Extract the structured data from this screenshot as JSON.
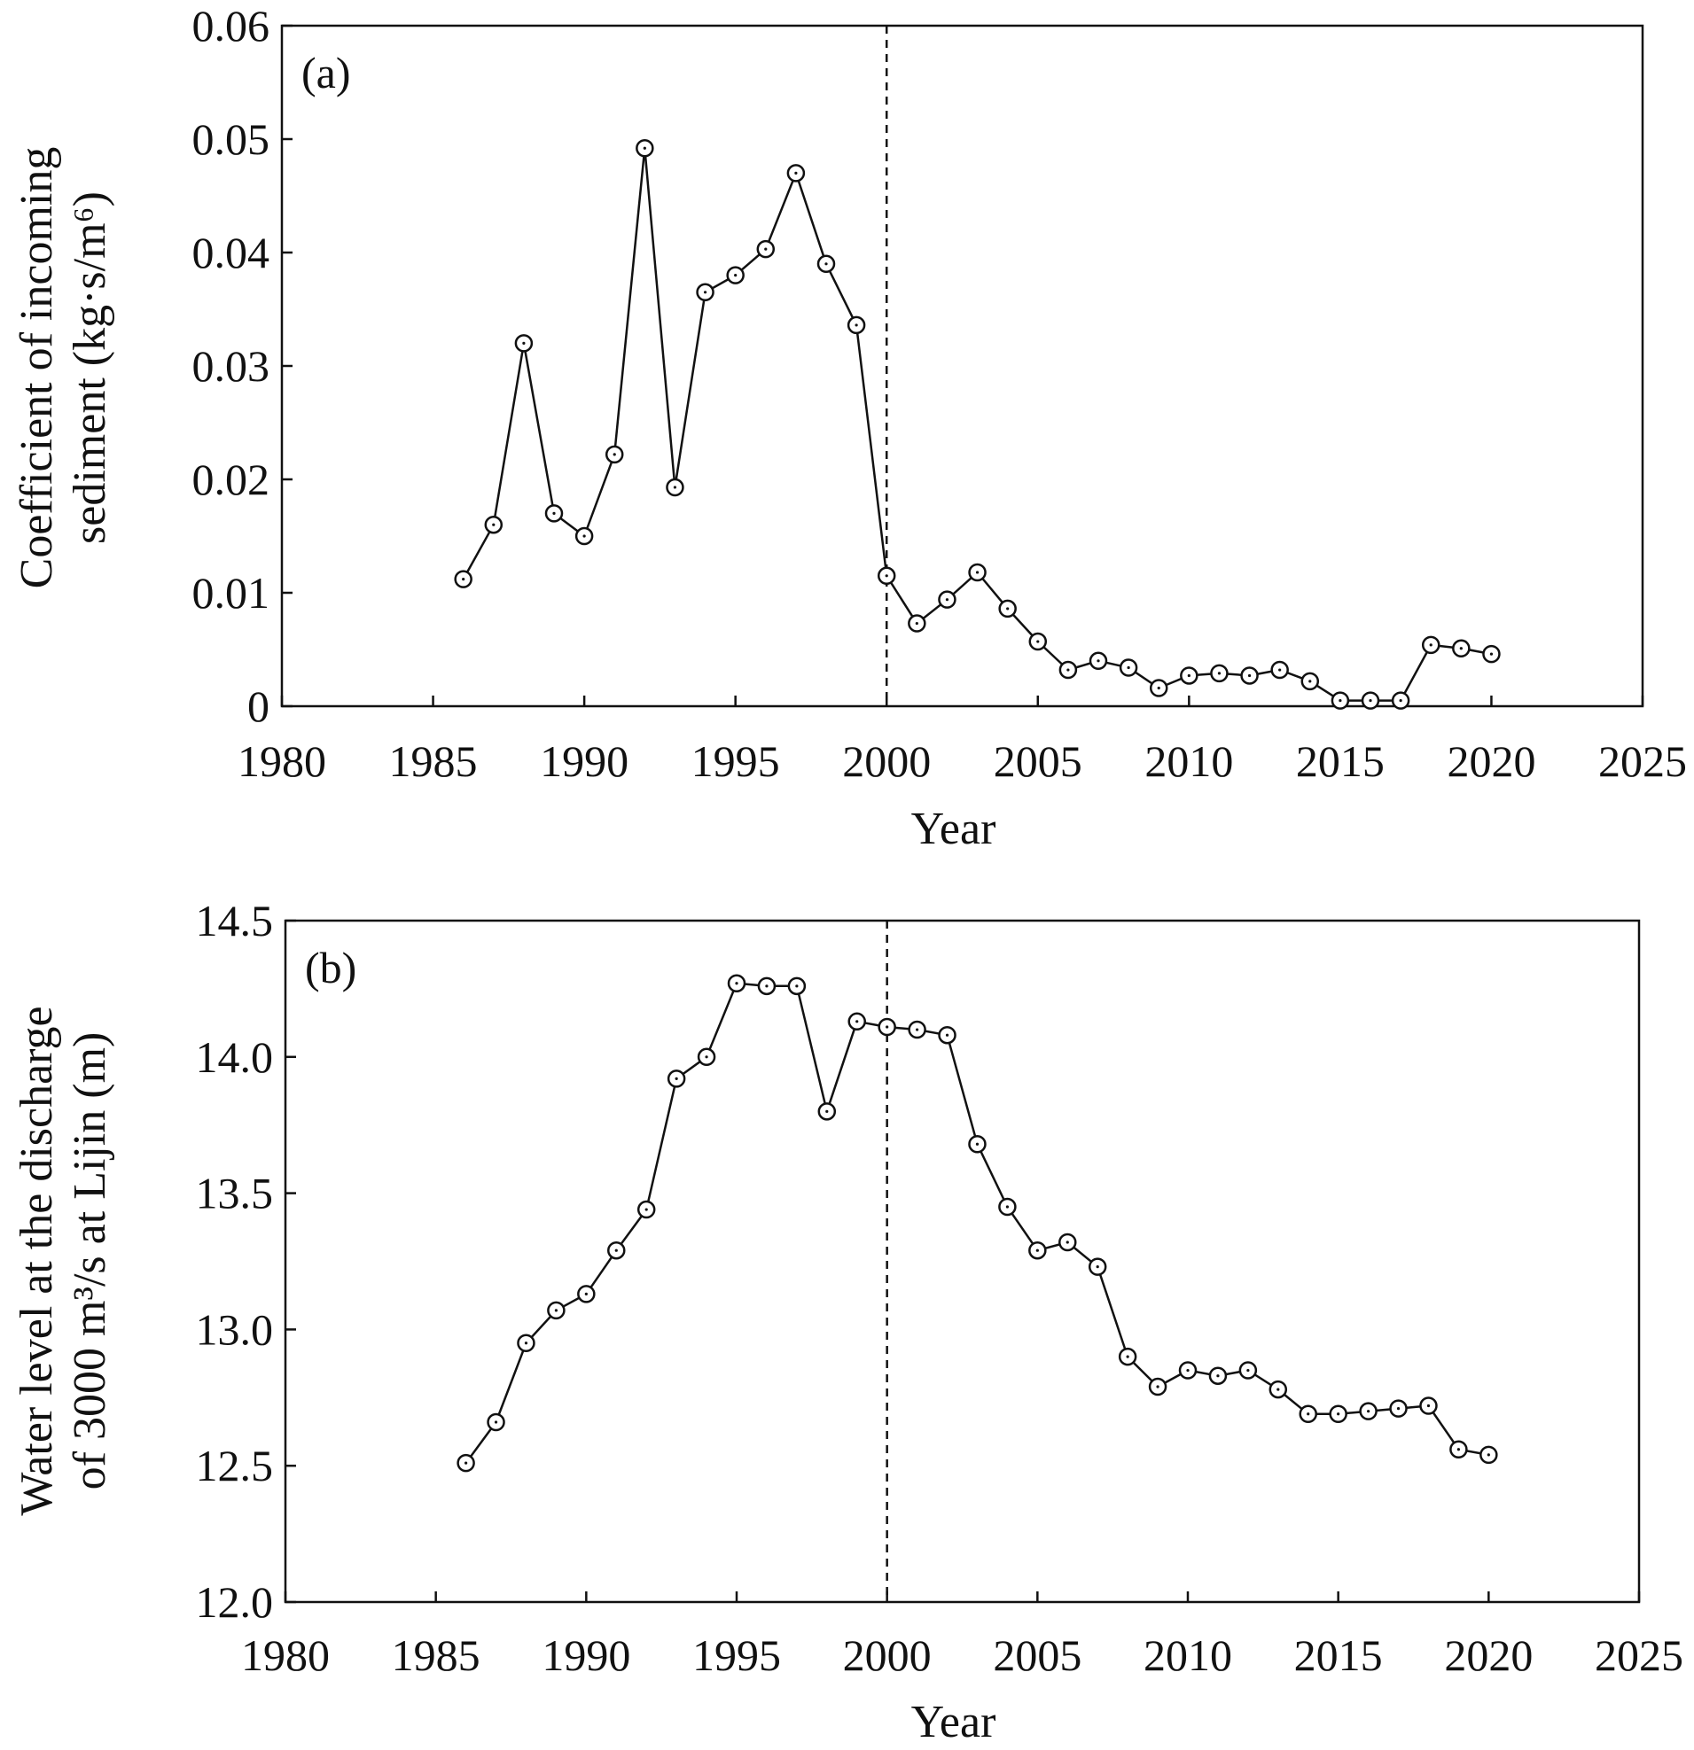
{
  "chart_data": [
    {
      "type": "line",
      "panel_label": "(a)",
      "xlabel": "Year",
      "ylabel_lines": [
        "Coefficient of incoming",
        "sediment (kg·s/m⁶)"
      ],
      "xlim": [
        1980,
        2025
      ],
      "ylim": [
        0,
        0.06
      ],
      "xticks": [
        1980,
        1985,
        1990,
        1995,
        2000,
        2005,
        2010,
        2015,
        2020,
        2025
      ],
      "xtick_labels": [
        "1980",
        "1985",
        "1990",
        "1995",
        "2000",
        "2005",
        "2010",
        "2015",
        "2020",
        "2025"
      ],
      "yticks": [
        0,
        0.01,
        0.02,
        0.03,
        0.04,
        0.05,
        0.06
      ],
      "ytick_labels": [
        "0",
        "0.01",
        "0.02",
        "0.03",
        "0.04",
        "0.05",
        "0.06"
      ],
      "reference_line_x": 2000,
      "grid": false,
      "marker": "open-circle",
      "series": [
        {
          "x": [
            1986,
            1987,
            1988,
            1989,
            1990,
            1991,
            1992,
            1993,
            1994,
            1995,
            1996,
            1997,
            1998,
            1999,
            2000,
            2001,
            2002,
            2003,
            2004,
            2005,
            2006,
            2007,
            2008,
            2009,
            2010,
            2011,
            2012,
            2013,
            2014,
            2015,
            2016,
            2017,
            2018,
            2019,
            2020
          ],
          "values": [
            0.0112,
            0.016,
            0.032,
            0.017,
            0.015,
            0.0222,
            0.0492,
            0.0193,
            0.0365,
            0.038,
            0.0403,
            0.047,
            0.039,
            0.0336,
            0.0115,
            0.0073,
            0.0094,
            0.0118,
            0.0086,
            0.0057,
            0.0032,
            0.004,
            0.0034,
            0.0016,
            0.0027,
            0.0029,
            0.0027,
            0.0032,
            0.0022,
            0.0005,
            0.0005,
            0.0005,
            0.0054,
            0.0051,
            0.0046
          ]
        }
      ]
    },
    {
      "type": "line",
      "panel_label": "(b)",
      "xlabel": "Year",
      "ylabel_lines": [
        "Water level at the discharge",
        "of 3000 m³/s at Lijin (m)"
      ],
      "xlim": [
        1980,
        2025
      ],
      "ylim": [
        12.0,
        14.5
      ],
      "xticks": [
        1980,
        1985,
        1990,
        1995,
        2000,
        2005,
        2010,
        2015,
        2020,
        2025
      ],
      "xtick_labels": [
        "1980",
        "1985",
        "1990",
        "1995",
        "2000",
        "2005",
        "2010",
        "2015",
        "2020",
        "2025"
      ],
      "yticks": [
        12.0,
        12.5,
        13.0,
        13.5,
        14.0,
        14.5
      ],
      "ytick_labels": [
        "12.0",
        "12.5",
        "13.0",
        "13.5",
        "14.0",
        "14.5"
      ],
      "reference_line_x": 2000,
      "grid": false,
      "marker": "open-circle",
      "series": [
        {
          "x": [
            1986,
            1987,
            1988,
            1989,
            1990,
            1991,
            1992,
            1993,
            1994,
            1995,
            1996,
            1997,
            1998,
            1999,
            2000,
            2001,
            2002,
            2003,
            2004,
            2005,
            2006,
            2007,
            2008,
            2009,
            2010,
            2011,
            2012,
            2013,
            2014,
            2015,
            2016,
            2017,
            2018,
            2019,
            2020
          ],
          "values": [
            12.51,
            12.66,
            12.95,
            13.07,
            13.13,
            13.29,
            13.44,
            13.92,
            14.0,
            14.27,
            14.26,
            14.26,
            13.8,
            14.13,
            14.11,
            14.1,
            14.08,
            13.68,
            13.45,
            13.29,
            13.32,
            13.23,
            12.9,
            12.79,
            12.85,
            12.83,
            12.85,
            12.78,
            12.69,
            12.69,
            12.7,
            12.71,
            12.72,
            12.56,
            12.54
          ]
        }
      ]
    }
  ]
}
